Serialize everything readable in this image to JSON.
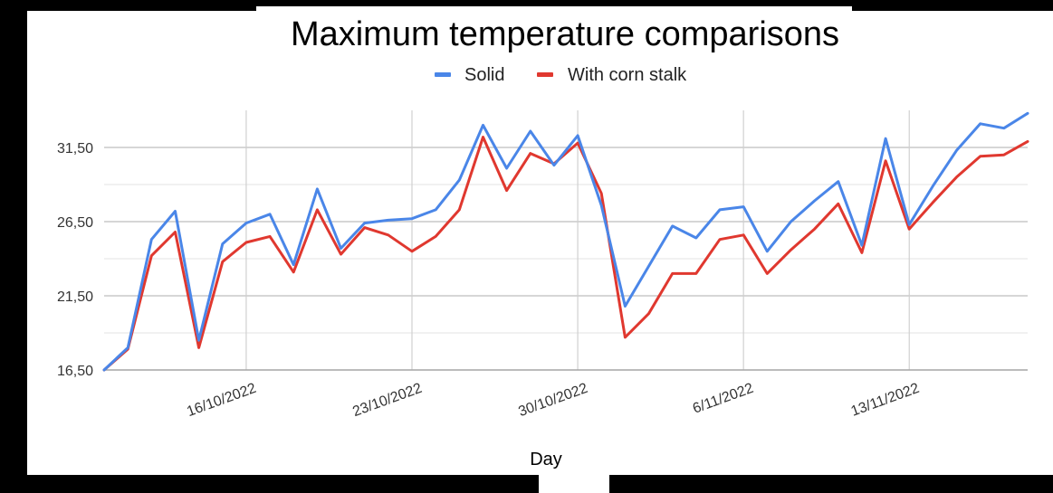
{
  "chart_data": {
    "type": "line",
    "title": "Maximum temperature comparisons",
    "xlabel": "Day",
    "ylabel": "",
    "legend_position": "top",
    "grid": true,
    "ylim": [
      16.5,
      33.3
    ],
    "y_ticks": [
      "16,50",
      "21,50",
      "26,50",
      "31,50"
    ],
    "y_tick_values": [
      16.5,
      21.5,
      26.5,
      31.5
    ],
    "x_tick_labels": [
      "16/10/2022",
      "23/10/2022",
      "30/10/2022",
      "6/11/2022",
      "13/11/2022"
    ],
    "x_tick_indices": [
      6,
      13,
      20,
      27,
      34
    ],
    "x_start": "10/10/2022",
    "series": [
      {
        "name": "Solid",
        "color": "#4a86e8",
        "values": [
          16.5,
          18.0,
          25.3,
          27.2,
          18.5,
          25.0,
          26.4,
          27.0,
          23.6,
          28.7,
          24.7,
          26.4,
          26.6,
          26.7,
          27.3,
          29.3,
          33.0,
          30.1,
          32.6,
          30.3,
          32.3,
          27.6,
          20.8,
          23.5,
          26.2,
          25.4,
          27.3,
          27.5,
          24.5,
          26.5,
          27.9,
          29.2,
          24.9,
          32.1,
          26.3,
          28.9,
          31.3,
          33.1,
          32.8,
          33.8
        ]
      },
      {
        "name": "With corn stalk",
        "color": "#e0382f",
        "values": [
          16.5,
          17.9,
          24.2,
          25.8,
          18.0,
          23.8,
          25.1,
          25.5,
          23.1,
          27.3,
          24.3,
          26.1,
          25.6,
          24.5,
          25.5,
          27.3,
          32.2,
          28.6,
          31.1,
          30.4,
          31.8,
          28.4,
          18.7,
          20.3,
          23.0,
          23.0,
          25.3,
          25.6,
          23.0,
          24.6,
          26.0,
          27.7,
          24.4,
          30.6,
          26.0,
          27.8,
          29.5,
          30.9,
          31.0,
          31.9
        ]
      }
    ]
  }
}
